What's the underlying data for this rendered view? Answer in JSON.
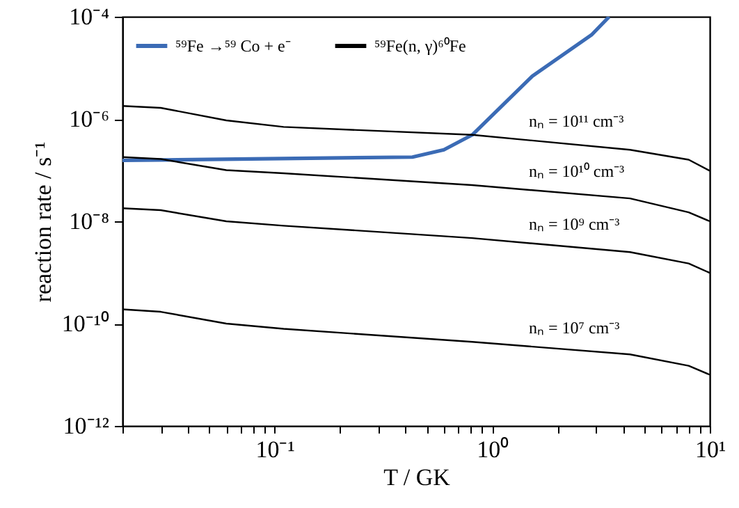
{
  "chart_data": {
    "type": "line",
    "xlabel": "T / GK",
    "ylabel": "reaction rate / s⁻¹",
    "log": "xy",
    "grid": false,
    "legend": "top left",
    "marker": "none",
    "line_style": "solid",
    "xlim": [
      0.02,
      10
    ],
    "ylim": [
      1e-12,
      0.0001
    ],
    "xticks": [
      {
        "value": 0.02,
        "label": null
      },
      {
        "value": 0.03,
        "label": null
      },
      {
        "value": 0.04,
        "label": null
      },
      {
        "value": 0.05,
        "label": null
      },
      {
        "value": 0.06,
        "label": null
      },
      {
        "value": 0.07,
        "label": null
      },
      {
        "value": 0.08,
        "label": null
      },
      {
        "value": 0.09,
        "label": null
      },
      {
        "value": 0.1,
        "label": "10⁻¹"
      },
      {
        "value": 0.2,
        "label": null
      },
      {
        "value": 0.3,
        "label": null
      },
      {
        "value": 0.4,
        "label": null
      },
      {
        "value": 0.5,
        "label": null
      },
      {
        "value": 0.6,
        "label": null
      },
      {
        "value": 0.7,
        "label": null
      },
      {
        "value": 0.8,
        "label": null
      },
      {
        "value": 0.9,
        "label": null
      },
      {
        "value": 1,
        "label": "10⁰"
      },
      {
        "value": 2,
        "label": null
      },
      {
        "value": 3,
        "label": null
      },
      {
        "value": 4,
        "label": null
      },
      {
        "value": 5,
        "label": null
      },
      {
        "value": 6,
        "label": null
      },
      {
        "value": 7,
        "label": null
      },
      {
        "value": 8,
        "label": null
      },
      {
        "value": 9,
        "label": null
      },
      {
        "value": 10,
        "label": "10¹"
      }
    ],
    "yticks": [
      {
        "value": 1e-12,
        "label": "10⁻¹²"
      },
      {
        "value": 1e-10,
        "label": "10⁻¹⁰"
      },
      {
        "value": 1e-08,
        "label": "10⁻⁸"
      },
      {
        "value": 1e-06,
        "label": "10⁻⁶"
      },
      {
        "value": 0.0001,
        "label": "10⁻⁴"
      }
    ],
    "series": [
      {
        "name": "⁵⁹Fe →⁵⁹ Co + e⁻",
        "color": "#3b6bb5",
        "x": [
          0.02,
          0.43,
          0.6,
          0.81,
          1.53,
          2.86,
          3.45
        ],
        "values": [
          1.55e-07,
          1.8e-07,
          2.5e-07,
          4.9e-07,
          6.9e-06,
          4.4e-05,
          0.0001
        ]
      },
      {
        "name": "⁵⁹Fe(n, γ)⁶⁰Fe",
        "color": "#000000",
        "x": [
          0.02,
          0.03,
          0.06,
          0.11,
          0.81,
          4.3,
          8,
          10
        ],
        "values": [
          1.8e-06,
          1.65e-06,
          9.4e-07,
          7e-07,
          4.9e-07,
          2.5e-07,
          1.6e-07,
          9.7e-08
        ]
      },
      {
        "color": "#000000",
        "x": [
          0.02,
          0.03,
          0.06,
          0.11,
          0.81,
          4.3,
          8,
          10
        ],
        "values": [
          1.8e-07,
          1.65e-07,
          1e-07,
          8.7e-08,
          5.1e-08,
          2.8e-08,
          1.5e-08,
          1e-08
        ]
      },
      {
        "color": "#000000",
        "x": [
          0.02,
          0.03,
          0.06,
          0.11,
          0.81,
          4.3,
          8,
          10
        ],
        "values": [
          1.8e-08,
          1.65e-08,
          1e-08,
          8.2e-09,
          4.7e-09,
          2.5e-09,
          1.5e-09,
          9.8e-10
        ]
      },
      {
        "color": "#000000",
        "x": [
          0.02,
          0.03,
          0.06,
          0.11,
          0.81,
          4.3,
          8,
          10
        ],
        "values": [
          1.9e-10,
          1.7e-10,
          1e-10,
          7.9e-11,
          4.4e-11,
          2.5e-11,
          1.5e-11,
          1e-11
        ]
      }
    ],
    "annotations": [
      "nₙ = 10¹¹ cm⁻³",
      "nₙ = 10¹⁰ cm⁻³",
      "nₙ = 10⁹ cm⁻³",
      "nₙ = 10⁷ cm⁻³"
    ]
  }
}
